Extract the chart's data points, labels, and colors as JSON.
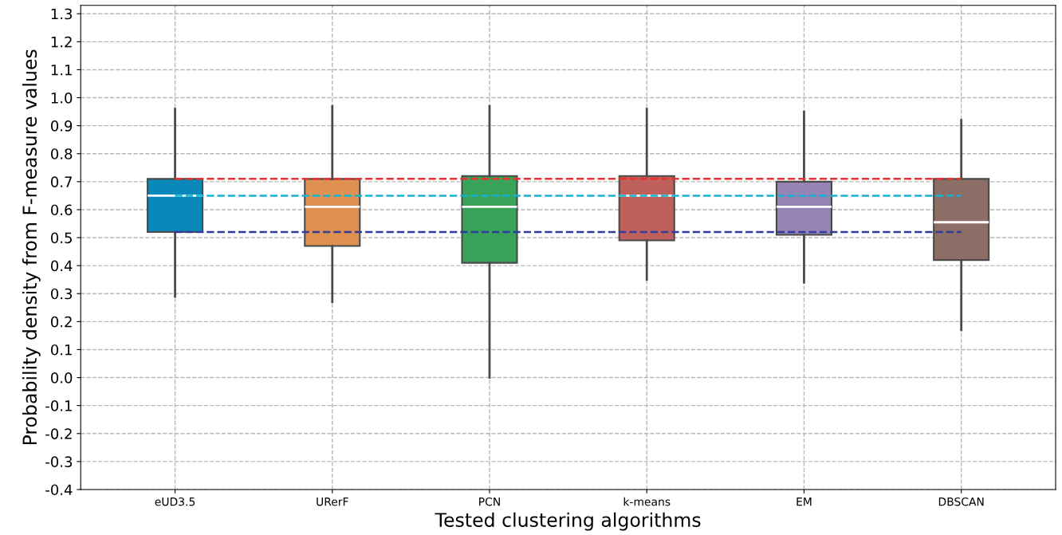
{
  "chart_data": {
    "type": "box",
    "xlabel": "Tested clustering algorithms",
    "ylabel": "Probability density from F-measure values",
    "categories": [
      "eUD3.5",
      "URerF",
      "PCN",
      "k-means",
      "EM",
      "DBSCAN"
    ],
    "colors": [
      "#0a88ba",
      "#de9150",
      "#3aa35a",
      "#c0605c",
      "#9584b4",
      "#8c6e66"
    ],
    "boxes": [
      {
        "low": 0.29,
        "q1": 0.52,
        "median": 0.65,
        "q3": 0.71,
        "high": 0.96
      },
      {
        "low": 0.27,
        "q1": 0.47,
        "median": 0.61,
        "q3": 0.71,
        "high": 0.97
      },
      {
        "low": 0.0,
        "q1": 0.41,
        "median": 0.61,
        "q3": 0.72,
        "high": 0.97
      },
      {
        "low": 0.35,
        "q1": 0.49,
        "median": 0.65,
        "q3": 0.72,
        "high": 0.96
      },
      {
        "low": 0.34,
        "q1": 0.51,
        "median": 0.61,
        "q3": 0.7,
        "high": 0.95
      },
      {
        "low": 0.17,
        "q1": 0.42,
        "median": 0.555,
        "q3": 0.71,
        "high": 0.92
      }
    ],
    "ylim": [
      -0.4,
      1.33
    ],
    "yticks": [
      {
        "value": -0.4,
        "label": "-0.4"
      },
      {
        "value": -0.3,
        "label": "-0.3"
      },
      {
        "value": -0.2,
        "label": "-0.2"
      },
      {
        "value": -0.1,
        "label": "-0.1"
      },
      {
        "value": 0,
        "label": "0.0"
      },
      {
        "value": 0.1,
        "label": "0.1"
      },
      {
        "value": 0.2,
        "label": "0.2"
      },
      {
        "value": 0.3,
        "label": "0.3"
      },
      {
        "value": 0.4,
        "label": "0.4"
      },
      {
        "value": 0.5,
        "label": "0.5"
      },
      {
        "value": 0.6,
        "label": "0.6"
      },
      {
        "value": 0.7,
        "label": "0.7"
      },
      {
        "value": 0.8,
        "label": "0.8"
      },
      {
        "value": 0.9,
        "label": "0.9"
      },
      {
        "value": 1.0,
        "label": "1.0"
      },
      {
        "value": 1.1,
        "label": "1.1"
      },
      {
        "value": 1.2,
        "label": "1.2"
      },
      {
        "value": 1.3,
        "label": "1.3"
      }
    ],
    "ref_lines": [
      {
        "axis": "y",
        "value": 0.71,
        "color": "#e8322e",
        "line_style": "dashed"
      },
      {
        "axis": "y",
        "value": 0.65,
        "color": "#12b3d3",
        "line_style": "dashed"
      },
      {
        "axis": "y",
        "value": 0.52,
        "color": "#303c9c",
        "line_style": "dashed"
      }
    ],
    "grid": true
  }
}
